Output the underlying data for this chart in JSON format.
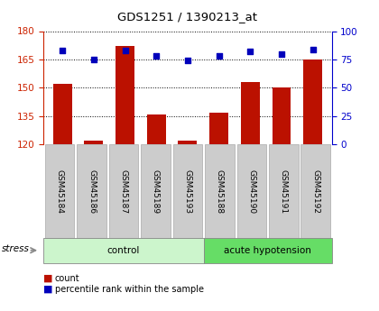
{
  "title": "GDS1251 / 1390213_at",
  "samples": [
    "GSM45184",
    "GSM45186",
    "GSM45187",
    "GSM45189",
    "GSM45193",
    "GSM45188",
    "GSM45190",
    "GSM45191",
    "GSM45192"
  ],
  "counts": [
    152,
    122,
    172,
    136,
    122,
    137,
    153,
    150,
    165
  ],
  "percentiles": [
    83,
    75,
    83,
    78,
    74,
    78,
    82,
    80,
    84
  ],
  "group_labels": [
    "control",
    "acute hypotension"
  ],
  "group_control_count": 5,
  "group_color_control": "#ccf5cc",
  "group_color_acute": "#66dd66",
  "bar_color": "#bb1100",
  "dot_color": "#0000bb",
  "ylim_left": [
    120,
    180
  ],
  "ylim_right": [
    0,
    100
  ],
  "yticks_left": [
    120,
    135,
    150,
    165,
    180
  ],
  "yticks_right": [
    0,
    25,
    50,
    75,
    100
  ],
  "grid_values": [
    135,
    150,
    165,
    180
  ],
  "stress_label": "stress",
  "legend_count": "count",
  "legend_percentile": "percentile rank within the sample",
  "bar_width": 0.6,
  "left_axis_color": "#cc2200",
  "right_axis_color": "#0000cc",
  "tickbox_color": "#cccccc",
  "tickbox_edge": "#aaaaaa"
}
